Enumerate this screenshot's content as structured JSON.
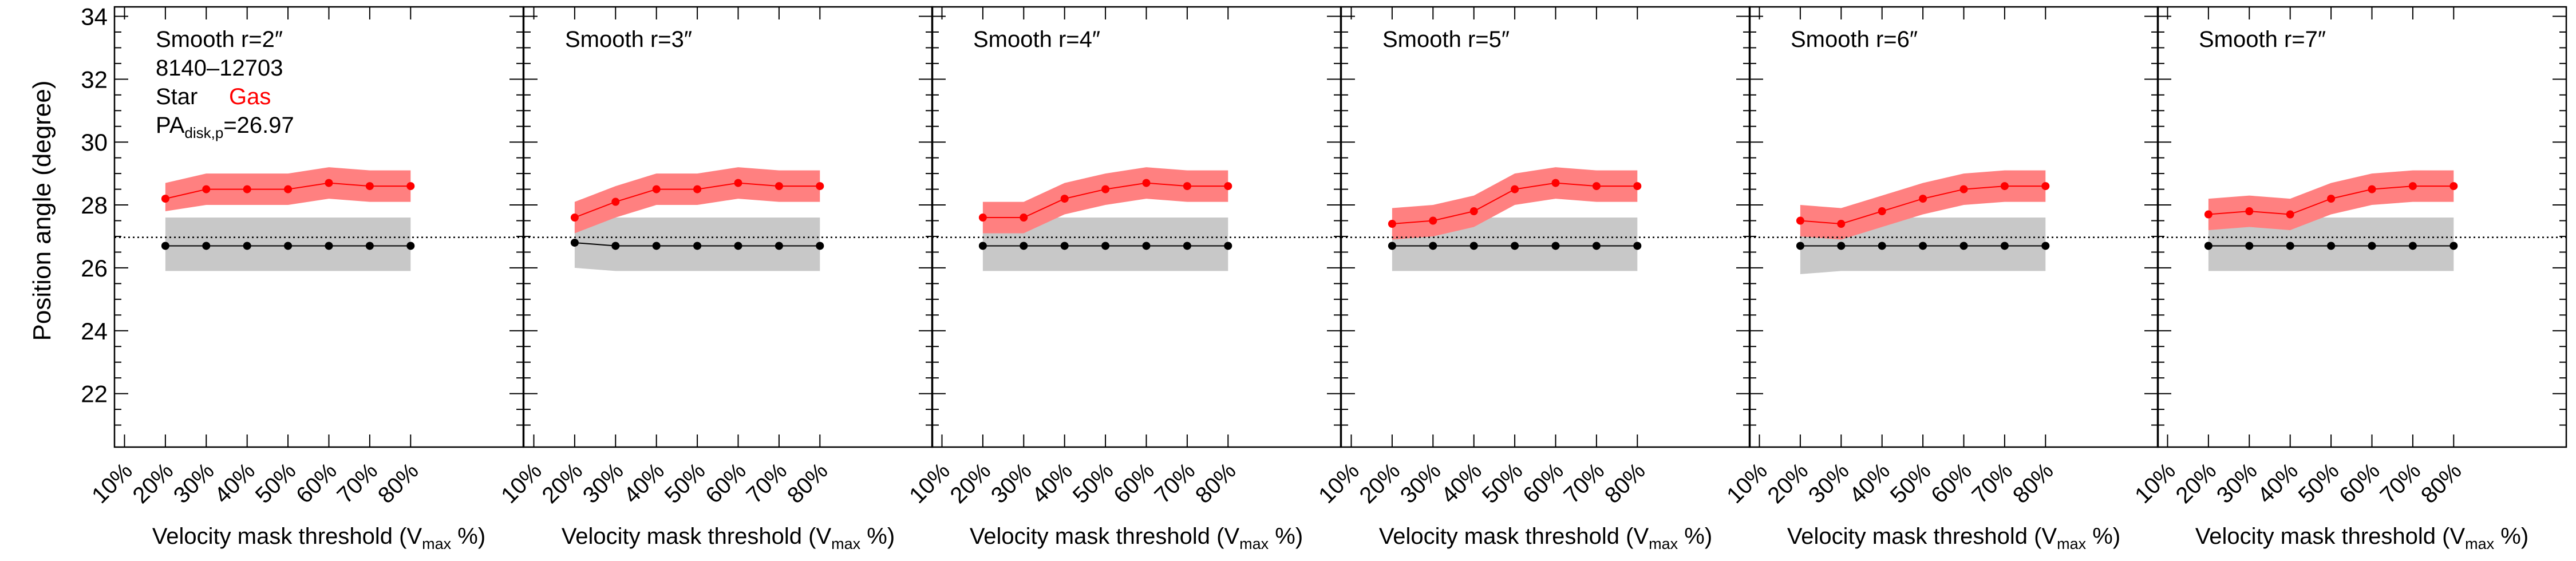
{
  "figure": {
    "ylabel": "Position angle (degree)",
    "legend": {
      "id_text": "8140–12703",
      "star_label": "Star",
      "gas_label": "Gas",
      "pa_main": "PA",
      "pa_sub": "disk,p",
      "pa_value": "=26.97"
    },
    "xlabel": {
      "pre": "Velocity mask threshold (V",
      "sub": "max",
      "post": " %)"
    }
  },
  "chart_data": {
    "type": "line",
    "colors": {
      "star": "#000000",
      "gas": "#ff0000",
      "star_band": "#c8c8c8",
      "gas_band": "#ff8080"
    },
    "ylim": [
      20.3,
      34.3
    ],
    "yticks": [
      22,
      24,
      26,
      28,
      30,
      32,
      34
    ],
    "categories": [
      "10%",
      "20%",
      "30%",
      "40%",
      "50%",
      "60%",
      "70%",
      "80%"
    ],
    "reference_line": 26.97,
    "series_names": [
      "Star",
      "Gas"
    ],
    "panels": [
      {
        "title": "Smooth r=2″",
        "star": [
          null,
          26.7,
          26.7,
          26.7,
          26.7,
          26.7,
          26.7,
          26.7
        ],
        "star_lo": [
          null,
          25.9,
          25.9,
          25.9,
          25.9,
          25.9,
          25.9,
          25.9
        ],
        "star_hi": [
          null,
          27.6,
          27.6,
          27.6,
          27.6,
          27.6,
          27.6,
          27.6
        ],
        "gas": [
          null,
          28.2,
          28.5,
          28.5,
          28.5,
          28.7,
          28.6,
          28.6
        ],
        "gas_lo": [
          null,
          27.8,
          28.0,
          28.0,
          28.0,
          28.2,
          28.1,
          28.1
        ],
        "gas_hi": [
          null,
          28.7,
          29.0,
          29.0,
          29.0,
          29.2,
          29.1,
          29.1
        ]
      },
      {
        "title": "Smooth r=3″",
        "star": [
          null,
          26.8,
          26.7,
          26.7,
          26.7,
          26.7,
          26.7,
          26.7
        ],
        "star_lo": [
          null,
          26.0,
          25.9,
          25.9,
          25.9,
          25.9,
          25.9,
          25.9
        ],
        "star_hi": [
          null,
          27.6,
          27.6,
          27.6,
          27.6,
          27.6,
          27.6,
          27.6
        ],
        "gas": [
          null,
          27.6,
          28.1,
          28.5,
          28.5,
          28.7,
          28.6,
          28.6
        ],
        "gas_lo": [
          null,
          27.1,
          27.6,
          28.0,
          28.0,
          28.2,
          28.1,
          28.1
        ],
        "gas_hi": [
          null,
          28.1,
          28.6,
          29.0,
          29.0,
          29.2,
          29.1,
          29.1
        ]
      },
      {
        "title": "Smooth r=4″",
        "star": [
          null,
          26.7,
          26.7,
          26.7,
          26.7,
          26.7,
          26.7,
          26.7
        ],
        "star_lo": [
          null,
          25.9,
          25.9,
          25.9,
          25.9,
          25.9,
          25.9,
          25.9
        ],
        "star_hi": [
          null,
          27.6,
          27.6,
          27.6,
          27.6,
          27.6,
          27.6,
          27.6
        ],
        "gas": [
          null,
          27.6,
          27.6,
          28.2,
          28.5,
          28.7,
          28.6,
          28.6
        ],
        "gas_lo": [
          null,
          27.1,
          27.1,
          27.7,
          28.0,
          28.2,
          28.1,
          28.1
        ],
        "gas_hi": [
          null,
          28.1,
          28.1,
          28.7,
          29.0,
          29.2,
          29.1,
          29.1
        ]
      },
      {
        "title": "Smooth r=5″",
        "star": [
          null,
          26.7,
          26.7,
          26.7,
          26.7,
          26.7,
          26.7,
          26.7
        ],
        "star_lo": [
          null,
          25.9,
          25.9,
          25.9,
          25.9,
          25.9,
          25.9,
          25.9
        ],
        "star_hi": [
          null,
          27.6,
          27.6,
          27.6,
          27.6,
          27.6,
          27.6,
          27.6
        ],
        "gas": [
          null,
          27.4,
          27.5,
          27.8,
          28.5,
          28.7,
          28.6,
          28.6
        ],
        "gas_lo": [
          null,
          26.9,
          27.0,
          27.3,
          28.0,
          28.2,
          28.1,
          28.1
        ],
        "gas_hi": [
          null,
          27.9,
          28.0,
          28.3,
          29.0,
          29.2,
          29.1,
          29.1
        ]
      },
      {
        "title": "Smooth r=6″",
        "star": [
          null,
          26.7,
          26.7,
          26.7,
          26.7,
          26.7,
          26.7,
          26.7
        ],
        "star_lo": [
          null,
          25.8,
          25.9,
          25.9,
          25.9,
          25.9,
          25.9,
          25.9
        ],
        "star_hi": [
          null,
          27.6,
          27.6,
          27.6,
          27.6,
          27.6,
          27.6,
          27.6
        ],
        "gas": [
          null,
          27.5,
          27.4,
          27.8,
          28.2,
          28.5,
          28.6,
          28.6
        ],
        "gas_lo": [
          null,
          27.0,
          26.9,
          27.3,
          27.7,
          28.0,
          28.1,
          28.1
        ],
        "gas_hi": [
          null,
          28.0,
          27.9,
          28.3,
          28.7,
          29.0,
          29.1,
          29.1
        ]
      },
      {
        "title": "Smooth r=7″",
        "star": [
          null,
          26.7,
          26.7,
          26.7,
          26.7,
          26.7,
          26.7,
          26.7
        ],
        "star_lo": [
          null,
          25.9,
          25.9,
          25.9,
          25.9,
          25.9,
          25.9,
          25.9
        ],
        "star_hi": [
          null,
          27.6,
          27.6,
          27.6,
          27.6,
          27.6,
          27.6,
          27.6
        ],
        "gas": [
          null,
          27.7,
          27.8,
          27.7,
          28.2,
          28.5,
          28.6,
          28.6
        ],
        "gas_lo": [
          null,
          27.2,
          27.3,
          27.2,
          27.7,
          28.0,
          28.1,
          28.1
        ],
        "gas_hi": [
          null,
          28.2,
          28.3,
          28.2,
          28.7,
          29.0,
          29.1,
          29.1
        ]
      }
    ]
  }
}
